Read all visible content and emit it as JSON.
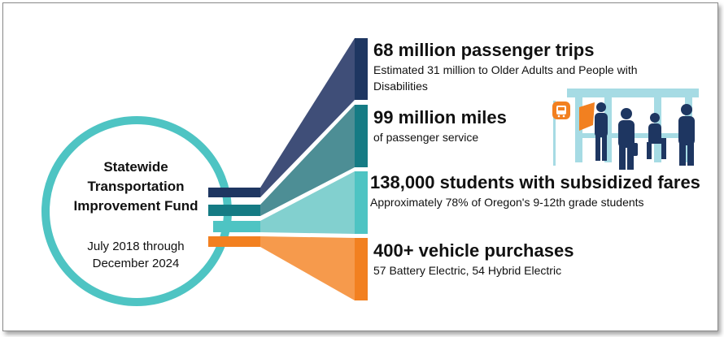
{
  "fund": {
    "title": "Statewide Transportation Improvement Fund",
    "title_lines": [
      "Statewide",
      "Transportation",
      "Improvement Fund"
    ],
    "dates_lines": [
      "July 2018 through",
      "December 2024"
    ]
  },
  "stats": [
    {
      "headline": "68 million passenger trips",
      "detail": "Estimated 31 million to Older Adults and People with Disabilities",
      "color": "#1e3661"
    },
    {
      "headline": "99 million miles",
      "detail": "of passenger service",
      "color": "#157b84"
    },
    {
      "headline": "138,000 students with subsidized fares",
      "detail": "Approximately 78% of Oregon's 9-12th grade students",
      "color": "#4ec4c3"
    },
    {
      "headline": "400+ vehicle purchases",
      "detail": "57 Battery Electric, 54 Hybrid Electric",
      "color": "#f28020"
    }
  ],
  "colors": {
    "ring": "#4ec4c3",
    "navy": "#1e3661",
    "teal": "#157b84",
    "aqua": "#4ec4c3",
    "orange": "#f28020",
    "shelter": "#a6dbe4",
    "people": "#1e3661"
  },
  "icons": [
    "bus-stop-icon",
    "bus-shelter-illustration"
  ]
}
